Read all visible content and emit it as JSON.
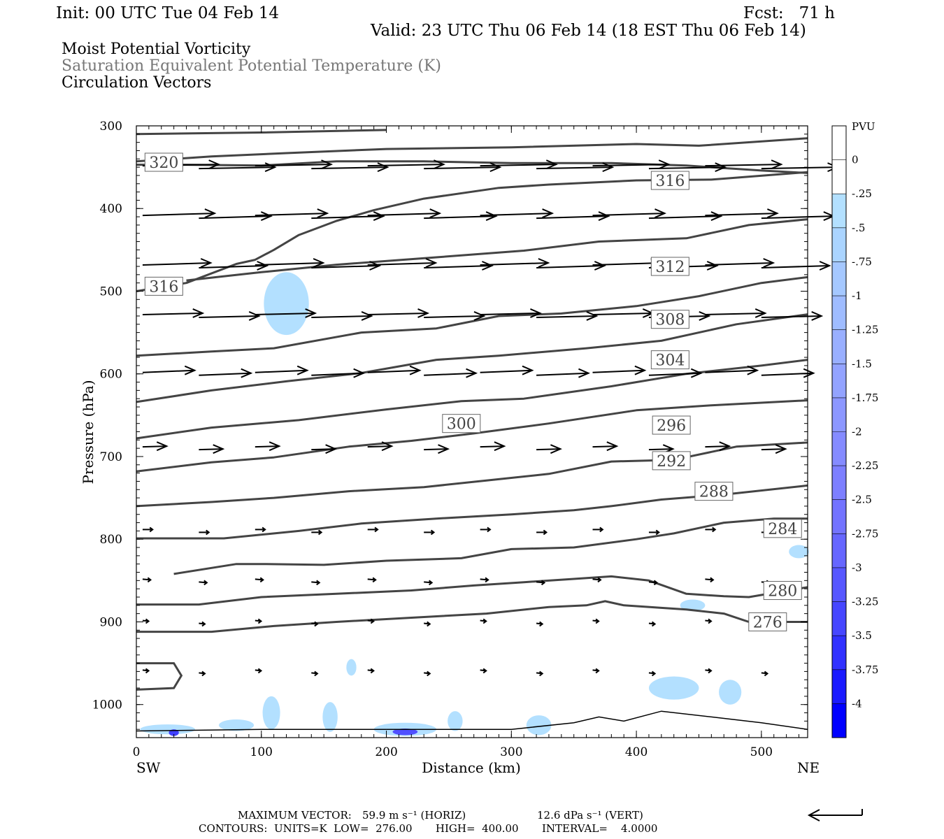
{
  "header": {
    "init": "Init: 00 UTC Tue 04 Feb 14",
    "fcst": "Fcst:   71 h",
    "valid": "Valid: 23 UTC Thu 06 Feb 14 (18 EST Thu 06 Feb 14)",
    "fields": [
      "Moist Potential Vorticity",
      "Saturation Equivalent Potential Temperature (K)",
      "Circulation Vectors"
    ]
  },
  "footer": {
    "max_vector_label": "MAXIMUM VECTOR:",
    "max_vector_horiz": "59.9 m s⁻¹ (HORIZ)",
    "max_vector_vert": "12.6 dPa s⁻¹ (VERT)",
    "contours": "CONTOURS:  UNITS=K  LOW=  276.00       HIGH=  400.00       INTERVAL=    4.0000"
  },
  "colors": {
    "contour": "#444444",
    "vector": "#000000",
    "pv_light": "#b3e0ff",
    "pv_dark": "#0000ff"
  },
  "chart_data": {
    "type": "cross-section",
    "xlabel": "Distance (km)",
    "ylabel": "Pressure (hPa)",
    "x_end_labels": {
      "left": "SW",
      "right": "NE"
    },
    "xlim": [
      0,
      537
    ],
    "ylim": [
      300,
      1040
    ],
    "y_reversed": true,
    "x_ticks": [
      0,
      100,
      200,
      300,
      400,
      500
    ],
    "y_ticks": [
      300,
      400,
      500,
      600,
      700,
      800,
      900,
      1000
    ],
    "colorbar": {
      "title": "PVU",
      "levels": [
        "0",
        "-.25",
        "-.5",
        "-.75",
        "-1",
        "-1.25",
        "-1.5",
        "-1.75",
        "-2",
        "-2.25",
        "-2.5",
        "-2.75",
        "-3",
        "-3.25",
        "-3.5",
        "-3.75",
        "-4"
      ],
      "colors": [
        "#ffffff",
        "#ffffff",
        "#b3e0ff",
        "#aad4ff",
        "#a5c8ff",
        "#9fbcff",
        "#99afff",
        "#93a3ff",
        "#8c97ff",
        "#858bff",
        "#7d7fff",
        "#7373ff",
        "#6666ff",
        "#5757ff",
        "#4646ff",
        "#3131ff",
        "#1a1aff",
        "#0000ff"
      ]
    },
    "theta_e_contours": [
      {
        "label": "320",
        "label_at": [
          22,
          344
        ],
        "points": [
          [
            0,
            310
          ],
          [
            100,
            308
          ],
          [
            200,
            305
          ]
        ]
      },
      {
        "label": "",
        "label_at": null,
        "points": [
          [
            0,
            343
          ],
          [
            60,
            337
          ],
          [
            120,
            333
          ],
          [
            200,
            328
          ],
          [
            300,
            326
          ],
          [
            400,
            322
          ],
          [
            450,
            324
          ],
          [
            537,
            315
          ]
        ]
      },
      {
        "label": "316",
        "label_at": [
          427,
          366
        ],
        "points": [
          [
            0,
            347
          ],
          [
            40,
            347
          ],
          [
            100,
            348
          ],
          [
            160,
            343
          ],
          [
            230,
            343
          ],
          [
            300,
            345
          ],
          [
            380,
            345
          ],
          [
            440,
            348
          ],
          [
            500,
            354
          ],
          [
            537,
            357
          ]
        ]
      },
      {
        "label": "316",
        "label_at": [
          22,
          494
        ],
        "points": [
          [
            0,
            500
          ],
          [
            40,
            490
          ],
          [
            80,
            467
          ],
          [
            95,
            462
          ],
          [
            110,
            450
          ],
          [
            130,
            432
          ],
          [
            160,
            415
          ],
          [
            190,
            402
          ],
          [
            230,
            388
          ],
          [
            290,
            375
          ],
          [
            330,
            371
          ],
          [
            400,
            366
          ],
          [
            460,
            365
          ],
          [
            537,
            356
          ]
        ]
      },
      {
        "label": "312",
        "label_at": [
          427,
          470
        ],
        "points": [
          [
            40,
            487
          ],
          [
            100,
            477
          ],
          [
            160,
            468
          ],
          [
            240,
            459
          ],
          [
            310,
            451
          ],
          [
            370,
            440
          ],
          [
            440,
            436
          ],
          [
            490,
            420
          ],
          [
            537,
            413
          ]
        ]
      },
      {
        "label": "308",
        "label_at": [
          427,
          534
        ],
        "points": [
          [
            0,
            578
          ],
          [
            60,
            573
          ],
          [
            110,
            569
          ],
          [
            180,
            550
          ],
          [
            240,
            545
          ],
          [
            290,
            530
          ],
          [
            340,
            527
          ],
          [
            400,
            518
          ],
          [
            450,
            506
          ],
          [
            500,
            490
          ],
          [
            537,
            483
          ]
        ]
      },
      {
        "label": "304",
        "label_at": [
          427,
          583
        ],
        "points": [
          [
            0,
            634
          ],
          [
            60,
            620
          ],
          [
            120,
            609
          ],
          [
            180,
            599
          ],
          [
            240,
            583
          ],
          [
            290,
            578
          ],
          [
            360,
            569
          ],
          [
            420,
            560
          ],
          [
            480,
            540
          ],
          [
            537,
            528
          ]
        ]
      },
      {
        "label": "300",
        "label_at": [
          260,
          660
        ],
        "points": [
          [
            0,
            678
          ],
          [
            60,
            665
          ],
          [
            130,
            656
          ],
          [
            200,
            643
          ],
          [
            260,
            633
          ],
          [
            310,
            630
          ],
          [
            380,
            615
          ],
          [
            440,
            600
          ],
          [
            500,
            590
          ],
          [
            537,
            583
          ]
        ]
      },
      {
        "label": "296",
        "label_at": [
          428,
          662
        ],
        "points": [
          [
            0,
            718
          ],
          [
            60,
            707
          ],
          [
            110,
            701
          ],
          [
            170,
            688
          ],
          [
            220,
            681
          ],
          [
            270,
            672
          ],
          [
            330,
            660
          ],
          [
            400,
            644
          ],
          [
            460,
            638
          ],
          [
            537,
            632
          ]
        ]
      },
      {
        "label": "292",
        "label_at": [
          428,
          705
        ],
        "points": [
          [
            0,
            760
          ],
          [
            60,
            755
          ],
          [
            110,
            750
          ],
          [
            170,
            742
          ],
          [
            230,
            737
          ],
          [
            280,
            729
          ],
          [
            330,
            721
          ],
          [
            380,
            706
          ],
          [
            430,
            704
          ],
          [
            480,
            688
          ],
          [
            537,
            683
          ]
        ]
      },
      {
        "label": "288",
        "label_at": [
          462,
          742
        ],
        "points": [
          [
            0,
            799
          ],
          [
            70,
            799
          ],
          [
            130,
            790
          ],
          [
            180,
            781
          ],
          [
            240,
            775
          ],
          [
            300,
            770
          ],
          [
            350,
            765
          ],
          [
            380,
            760
          ],
          [
            420,
            752
          ],
          [
            470,
            746
          ],
          [
            537,
            735
          ]
        ]
      },
      {
        "label": "284",
        "label_at": [
          517,
          787
        ],
        "points": [
          [
            30,
            842
          ],
          [
            80,
            830
          ],
          [
            100,
            830
          ],
          [
            150,
            831
          ],
          [
            200,
            826
          ],
          [
            260,
            823
          ],
          [
            300,
            812
          ],
          [
            350,
            810
          ],
          [
            400,
            800
          ],
          [
            430,
            793
          ],
          [
            470,
            780
          ],
          [
            510,
            775
          ],
          [
            537,
            775
          ]
        ]
      },
      {
        "label": "280",
        "label_at": [
          517,
          862
        ],
        "points": [
          [
            0,
            879
          ],
          [
            50,
            879
          ],
          [
            100,
            870
          ],
          [
            160,
            866
          ],
          [
            220,
            862
          ],
          [
            270,
            856
          ],
          [
            310,
            852
          ],
          [
            350,
            848
          ],
          [
            380,
            845
          ],
          [
            410,
            850
          ],
          [
            440,
            866
          ],
          [
            470,
            869
          ],
          [
            490,
            870
          ],
          [
            537,
            858
          ]
        ]
      },
      {
        "label": "276",
        "label_at": [
          505,
          900
        ],
        "points": [
          [
            0,
            912
          ],
          [
            60,
            912
          ],
          [
            110,
            905
          ],
          [
            160,
            900
          ],
          [
            220,
            895
          ],
          [
            280,
            890
          ],
          [
            330,
            882
          ],
          [
            360,
            880
          ],
          [
            375,
            875
          ],
          [
            390,
            880
          ],
          [
            420,
            883
          ],
          [
            440,
            885
          ],
          [
            470,
            890
          ],
          [
            490,
            900
          ],
          [
            537,
            900
          ]
        ]
      }
    ],
    "circulation_vectors": {
      "rows_hpa": [
        350,
        410,
        470,
        530,
        600,
        690,
        790,
        850,
        900,
        960
      ],
      "max_horiz_ms": 59.9,
      "max_vert_dpas": 12.6
    }
  }
}
